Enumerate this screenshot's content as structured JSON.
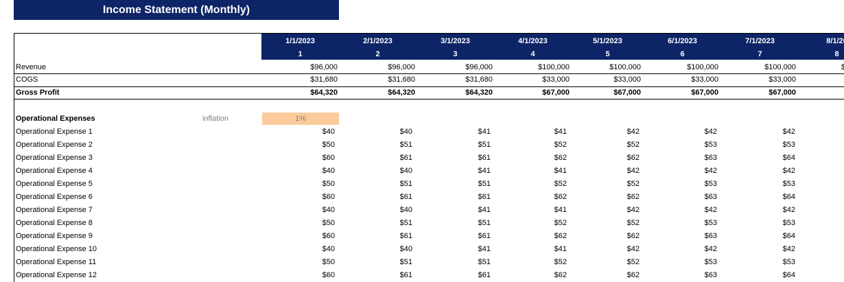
{
  "sheet": {
    "title": "Income Statement (Monthly)",
    "columns": [
      {
        "date": "1/1/2023",
        "index": "1"
      },
      {
        "date": "2/1/2023",
        "index": "2"
      },
      {
        "date": "3/1/2023",
        "index": "3"
      },
      {
        "date": "4/1/2023",
        "index": "4"
      },
      {
        "date": "5/1/2023",
        "index": "5"
      },
      {
        "date": "6/1/2023",
        "index": "6"
      },
      {
        "date": "7/1/2023",
        "index": "7"
      },
      {
        "date": "8/1/20",
        "index": "8"
      }
    ],
    "summary_rows": [
      {
        "label": "Revenue",
        "values": [
          "$96,000",
          "$96,000",
          "$96,000",
          "$100,000",
          "$100,000",
          "$100,000",
          "$100,000",
          "$"
        ]
      },
      {
        "label": "COGS",
        "values": [
          "$31,680",
          "$31,680",
          "$31,680",
          "$33,000",
          "$33,000",
          "$33,000",
          "$33,000",
          ""
        ]
      },
      {
        "label": "Gross Profit",
        "values": [
          "$64,320",
          "$64,320",
          "$64,320",
          "$67,000",
          "$67,000",
          "$67,000",
          "$67,000",
          ""
        ]
      }
    ],
    "opex_header": "Operational Expenses",
    "inflation_label": "inflation",
    "inflation_value": "1%",
    "opex_rows": [
      {
        "label": "Operational Expense 1",
        "values": [
          "$40",
          "$40",
          "$41",
          "$41",
          "$42",
          "$42",
          "$42"
        ]
      },
      {
        "label": "Operational Expense 2",
        "values": [
          "$50",
          "$51",
          "$51",
          "$52",
          "$52",
          "$53",
          "$53"
        ]
      },
      {
        "label": "Operational Expense 3",
        "values": [
          "$60",
          "$61",
          "$61",
          "$62",
          "$62",
          "$63",
          "$64"
        ]
      },
      {
        "label": "Operational Expense 4",
        "values": [
          "$40",
          "$40",
          "$41",
          "$41",
          "$42",
          "$42",
          "$42"
        ]
      },
      {
        "label": "Operational Expense 5",
        "values": [
          "$50",
          "$51",
          "$51",
          "$52",
          "$52",
          "$53",
          "$53"
        ]
      },
      {
        "label": "Operational Expense 6",
        "values": [
          "$60",
          "$61",
          "$61",
          "$62",
          "$62",
          "$63",
          "$64"
        ]
      },
      {
        "label": "Operational Expense 7",
        "values": [
          "$40",
          "$40",
          "$41",
          "$41",
          "$42",
          "$42",
          "$42"
        ]
      },
      {
        "label": "Operational Expense 8",
        "values": [
          "$50",
          "$51",
          "$51",
          "$52",
          "$52",
          "$53",
          "$53"
        ]
      },
      {
        "label": "Operational Expense 9",
        "values": [
          "$60",
          "$61",
          "$61",
          "$62",
          "$62",
          "$63",
          "$64"
        ]
      },
      {
        "label": "Operational Expense 10",
        "values": [
          "$40",
          "$40",
          "$41",
          "$41",
          "$42",
          "$42",
          "$42"
        ]
      },
      {
        "label": "Operational Expense 11",
        "values": [
          "$50",
          "$51",
          "$51",
          "$52",
          "$52",
          "$53",
          "$53"
        ]
      },
      {
        "label": "Operational Expense 12",
        "values": [
          "$60",
          "$61",
          "$61",
          "$62",
          "$62",
          "$63",
          "$64"
        ]
      }
    ]
  }
}
